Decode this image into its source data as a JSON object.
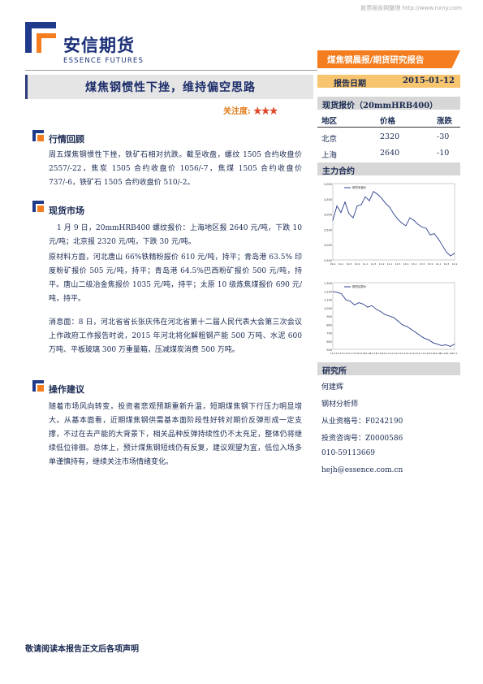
{
  "watermark": "股票报告网整理 http://www.nxny.com",
  "logo": {
    "name_cn": "安信期货",
    "name_en": "ESSENCE FUTURES",
    "colors": {
      "blue": "#1f3a8a",
      "orange": "#f37d1f"
    }
  },
  "banner": "煤焦钢晨报/期货研究报告",
  "report_date": {
    "label": "报告日期",
    "value": "2015-01-12"
  },
  "title": "煤焦钢惯性下挫，维持偏空思路",
  "attention": {
    "label": "关注度:",
    "stars": "★★★"
  },
  "sections": {
    "review": {
      "title": "行情回顾",
      "paragraphs": [
        "周五煤焦钢惯性下挫，铁矿石相对抗跌。截至收盘，螺纹 1505 合约收盘价 2557/-22，焦炭 1505 合约收盘价 1056/-7，焦煤 1505 合约收盘价 737/-6，铁矿石 1505 合约收盘价 510/-2。"
      ]
    },
    "spot": {
      "title": "现货市场",
      "paragraphs": [
        "1 月 9 日，20mmHRB400 螺纹报价：上海地区报 2640 元/吨，下跌 10 元/吨；北京报 2320 元/吨，下跌 30 元/吨。",
        "原材料方面，河北唐山 66%铁精粉报价 610 元/吨，持平；青岛港 63.5% 印度粉矿报价 505 元/吨，持平；青岛港 64.5%巴西粉矿报价 500 元/吨，持平。唐山二级冶金焦报价 1035 元/吨，持平；太原 10 级炼焦煤报价 690 元/吨，持平。",
        "消息面：8 日，河北省省长张庆伟在河北省第十二届人民代表大会第三次会议上作政府工作报告时说，2015 年河北将化解粗钢产能 500 万吨、水泥 600 万吨、平板玻璃 300 万重量箱，压减煤炭消费 500 万吨。"
      ]
    },
    "advice": {
      "title": "操作建议",
      "paragraphs": [
        "随着市场风向转变，投资者悲观预期重新升温，短期煤焦钢下行压力明显增大。从基本面看，近期煤焦钢供需基本面阶段性好转对期价反弹形成一定支撑，不过在去产能的大背景下，相关品种反弹持续性仍不太充足，整体仍将继续低位徘徊。总体上，预计煤焦钢短线仍有反复，建议观望为宜，低位入场多单谨慎持有，继续关注市场情绪变化。"
      ]
    }
  },
  "spot_quote": {
    "header": "现货报价（20mmHRB400）",
    "columns": [
      "地区",
      "价格",
      "涨跌"
    ],
    "rows": [
      [
        "北京",
        "2320",
        "-30"
      ],
      [
        "上海",
        "2640",
        "-10"
      ]
    ]
  },
  "main_contract": {
    "header": "主力合约"
  },
  "chart_data": [
    {
      "type": "line",
      "title": "",
      "legend": "期货收盘价",
      "y_ticks": [
        "5,000",
        "4,500",
        "4,000",
        "3,500",
        "3,000",
        "2,500"
      ],
      "x_ticks": [
        "09-9",
        "10-1",
        "10-5",
        "10-9",
        "11-1",
        "11-5",
        "11-9",
        "12-1",
        "12-5",
        "12-9",
        "13-1",
        "13-5",
        "13-9",
        "14-1",
        "14-5",
        "14-9"
      ],
      "ylim": [
        2300,
        5200
      ],
      "x": [
        0,
        1,
        2,
        3,
        4,
        5,
        6,
        7,
        8,
        9,
        10,
        11,
        12,
        13,
        14,
        15,
        16,
        17,
        18,
        19,
        20,
        21,
        22,
        23,
        24,
        25,
        26,
        27,
        28,
        29,
        30
      ],
      "values": [
        3800,
        4350,
        4100,
        4500,
        4050,
        3900,
        4350,
        4400,
        4700,
        4550,
        4900,
        4800,
        4650,
        4450,
        4300,
        4050,
        3850,
        3700,
        3600,
        3900,
        3800,
        3650,
        3550,
        3500,
        3250,
        3300,
        3100,
        2850,
        2600,
        2450,
        2560
      ]
    },
    {
      "type": "line",
      "title": "",
      "legend": "期货结算价",
      "y_ticks": [
        "1,300",
        "1,200",
        "1,100",
        "1,000",
        "900",
        "800",
        "700",
        "600",
        "500"
      ],
      "x_ticks": [
        "13-3",
        "13-5",
        "13-6",
        "13-7",
        "13-8",
        "13-9",
        "13-10",
        "13-11",
        "13-12",
        "14-1",
        "14-2",
        "14-3",
        "14-4",
        "14-5",
        "14-6",
        "14-7",
        "14-8",
        "14-9",
        "14-10",
        "14-11",
        "14-12",
        "15-1"
      ],
      "ylim": [
        450,
        1350
      ],
      "x": [
        0,
        1,
        2,
        3,
        4,
        5,
        6,
        7,
        8,
        9,
        10,
        11,
        12,
        13,
        14,
        15,
        16,
        17,
        18,
        19,
        20,
        21,
        22,
        23,
        24,
        25,
        26,
        27,
        28
      ],
      "values": [
        1230,
        1220,
        1200,
        1120,
        1100,
        1050,
        1080,
        1060,
        1020,
        1040,
        990,
        960,
        920,
        900,
        880,
        830,
        780,
        760,
        720,
        680,
        640,
        600,
        580,
        540,
        520,
        500,
        510,
        490,
        520
      ]
    }
  ],
  "research": {
    "header": "研究所",
    "lines": [
      "何建辉",
      "钢材分析师",
      "从业资格号：F0242190",
      "投资咨询号：Z0000586",
      "010-59113669",
      "hejh@essence.com.cn"
    ]
  },
  "footer": "敬请阅读本报告正文后各项声明"
}
